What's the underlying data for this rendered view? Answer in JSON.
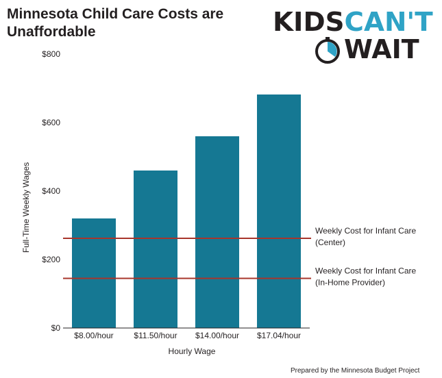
{
  "title": "Minnesota Child Care Costs are Unaffordable",
  "logo": {
    "line1_part1": "KIDS",
    "line1_part2": "CAN'T",
    "line2": "WAIT",
    "icon": "clock-icon"
  },
  "footer": "Prepared by the Minnesota Budget Project",
  "colors": {
    "bar": "#157893",
    "reference_line": "#a8352b",
    "logo_accent": "#2fa3c6"
  },
  "chart_data": {
    "type": "bar",
    "categories": [
      "$8.00/hour",
      "$11.50/hour",
      "$14.00/hour",
      "$17.04/hour"
    ],
    "values": [
      320,
      460,
      560,
      682
    ],
    "xlabel": "Hourly Wage",
    "ylabel": "Full-Time Weekly Wages",
    "ylim": [
      0,
      800
    ],
    "yticks": [
      0,
      200,
      400,
      600,
      800
    ],
    "ytick_labels": [
      "$0",
      "$200",
      "$400",
      "$600",
      "$800"
    ],
    "grid": false,
    "reference_lines": [
      {
        "value": 262,
        "label_line1": "Weekly Cost for Infant Care",
        "label_line2": "(Center)"
      },
      {
        "value": 145,
        "label_line1": "Weekly Cost for Infant Care",
        "label_line2": "(In-Home Provider)"
      }
    ]
  }
}
